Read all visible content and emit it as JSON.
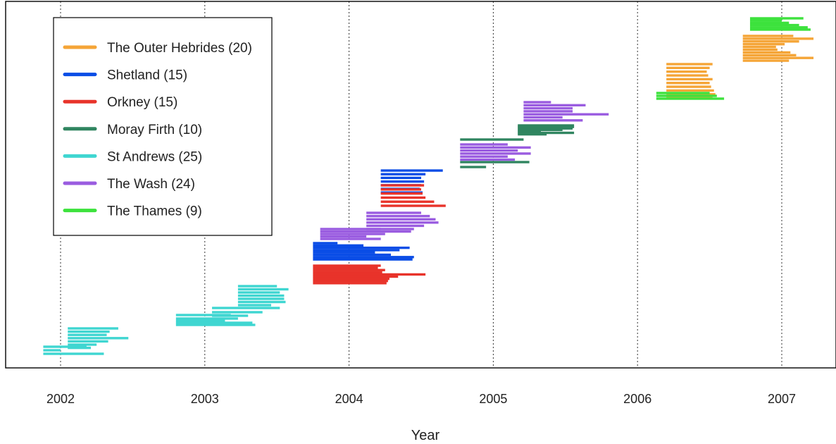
{
  "chart_data": {
    "type": "timeline",
    "title": "",
    "xlabel": "Year",
    "ylabel": "",
    "xlim": [
      2001.62,
      2008.05
    ],
    "x_ticks": [
      2002,
      2003,
      2004,
      2005,
      2006,
      2007
    ],
    "x_tick_labels": [
      "2002",
      "2003",
      "2004",
      "2005",
      "2006",
      "2007"
    ],
    "vertical_gridlines": "dotted at each year",
    "legend_position": "top-left",
    "series": [
      {
        "name": "The Outer Hebrides (20)",
        "color": "#f5a537",
        "intervals": [
          [
            2006.2,
            2006.52
          ],
          [
            2006.2,
            2006.5
          ],
          [
            2006.2,
            2006.48
          ],
          [
            2006.2,
            2006.49
          ],
          [
            2006.2,
            2006.52
          ],
          [
            2006.2,
            2006.5
          ],
          [
            2006.2,
            2006.51
          ],
          [
            2006.2,
            2006.53
          ],
          [
            2006.2,
            2006.54
          ],
          [
            2006.2,
            2006.52
          ],
          [
            2006.73,
            2007.08
          ],
          [
            2006.73,
            2007.22
          ],
          [
            2006.73,
            2007.12
          ],
          [
            2006.73,
            2007.02
          ],
          [
            2006.73,
            2006.96
          ],
          [
            2006.73,
            2006.97
          ],
          [
            2006.73,
            2007.06
          ],
          [
            2006.73,
            2007.1
          ],
          [
            2006.73,
            2007.22
          ],
          [
            2006.73,
            2007.05
          ]
        ]
      },
      {
        "name": "Shetland (15)",
        "color": "#0a4de6",
        "intervals": [
          [
            2004.22,
            2004.65
          ],
          [
            2004.22,
            2004.53
          ],
          [
            2004.22,
            2004.5
          ],
          [
            2004.22,
            2004.52
          ],
          [
            2004.22,
            2004.5
          ],
          [
            2004.22,
            2004.49
          ],
          [
            2004.22,
            2004.51
          ],
          [
            2003.75,
            2003.92
          ],
          [
            2003.75,
            2004.1
          ],
          [
            2003.75,
            2004.42
          ],
          [
            2003.75,
            2004.35
          ],
          [
            2003.75,
            2004.18
          ],
          [
            2003.75,
            2004.29
          ],
          [
            2003.75,
            2004.45
          ],
          [
            2003.75,
            2004.44
          ]
        ]
      },
      {
        "name": "Orkney (15)",
        "color": "#e8332a",
        "intervals": [
          [
            2004.22,
            2004.52
          ],
          [
            2004.22,
            2004.5
          ],
          [
            2004.22,
            2004.51
          ],
          [
            2004.22,
            2004.53
          ],
          [
            2004.22,
            2004.59
          ],
          [
            2004.22,
            2004.67
          ],
          [
            2003.75,
            2004.22
          ],
          [
            2003.75,
            2004.2
          ],
          [
            2003.75,
            2004.25
          ],
          [
            2003.75,
            2004.23
          ],
          [
            2003.75,
            2004.53
          ],
          [
            2003.75,
            2004.34
          ],
          [
            2003.75,
            2004.28
          ],
          [
            2003.75,
            2004.27
          ],
          [
            2003.75,
            2004.26
          ]
        ]
      },
      {
        "name": "Moray Firth (10)",
        "color": "#308560",
        "intervals": [
          [
            2004.77,
            2005.21
          ],
          [
            2004.77,
            2005.25
          ],
          [
            2004.77,
            2004.95
          ],
          [
            2005.17,
            2005.56
          ],
          [
            2005.17,
            2005.56
          ],
          [
            2005.17,
            2005.55
          ],
          [
            2005.17,
            2005.48
          ],
          [
            2005.17,
            2005.33
          ],
          [
            2005.17,
            2005.56
          ],
          [
            2005.17,
            2005.37
          ]
        ]
      },
      {
        "name": "St Andrews (25)",
        "color": "#3fd6d1",
        "intervals": [
          [
            2002.05,
            2002.4
          ],
          [
            2002.05,
            2002.34
          ],
          [
            2002.05,
            2002.32
          ],
          [
            2002.05,
            2002.47
          ],
          [
            2002.05,
            2002.33
          ],
          [
            2002.05,
            2002.25
          ],
          [
            2002.05,
            2002.21
          ],
          [
            2001.88,
            2002.18
          ],
          [
            2001.88,
            2002.0
          ],
          [
            2001.88,
            2002.3
          ],
          [
            2003.23,
            2003.5
          ],
          [
            2003.23,
            2003.58
          ],
          [
            2003.23,
            2003.52
          ],
          [
            2003.23,
            2003.55
          ],
          [
            2003.23,
            2003.55
          ],
          [
            2003.23,
            2003.56
          ],
          [
            2003.23,
            2003.46
          ],
          [
            2003.05,
            2003.52
          ],
          [
            2003.05,
            2003.4
          ],
          [
            2003.05,
            2003.3
          ],
          [
            2002.8,
            2003.18
          ],
          [
            2002.8,
            2003.23
          ],
          [
            2002.8,
            2003.14
          ],
          [
            2002.8,
            2003.33
          ],
          [
            2002.8,
            2003.35
          ]
        ]
      },
      {
        "name": "The Wash (24)",
        "color": "#9a5ce0",
        "intervals": [
          [
            2005.21,
            2005.4
          ],
          [
            2005.21,
            2005.64
          ],
          [
            2005.21,
            2005.55
          ],
          [
            2005.21,
            2005.55
          ],
          [
            2005.21,
            2005.8
          ],
          [
            2005.21,
            2005.48
          ],
          [
            2005.21,
            2005.62
          ],
          [
            2004.77,
            2005.1
          ],
          [
            2004.77,
            2005.26
          ],
          [
            2004.77,
            2005.17
          ],
          [
            2004.77,
            2005.26
          ],
          [
            2004.77,
            2005.1
          ],
          [
            2004.77,
            2005.15
          ],
          [
            2004.12,
            2004.5
          ],
          [
            2004.12,
            2004.56
          ],
          [
            2004.12,
            2004.6
          ],
          [
            2004.12,
            2004.62
          ],
          [
            2004.12,
            2004.52
          ],
          [
            2004.12,
            2004.45
          ],
          [
            2003.8,
            2004.22
          ],
          [
            2003.8,
            2004.43
          ],
          [
            2003.8,
            2004.25
          ],
          [
            2003.8,
            2004.12
          ],
          [
            2003.8,
            2004.22
          ]
        ]
      },
      {
        "name": "The Thames (9)",
        "color": "#3de23d",
        "intervals": [
          [
            2006.78,
            2007.15
          ],
          [
            2006.78,
            2007.0
          ],
          [
            2006.78,
            2007.05
          ],
          [
            2006.78,
            2007.12
          ],
          [
            2006.78,
            2007.18
          ],
          [
            2006.78,
            2007.2
          ],
          [
            2006.13,
            2006.5
          ],
          [
            2006.13,
            2006.55
          ],
          [
            2006.13,
            2006.6
          ]
        ]
      }
    ]
  }
}
